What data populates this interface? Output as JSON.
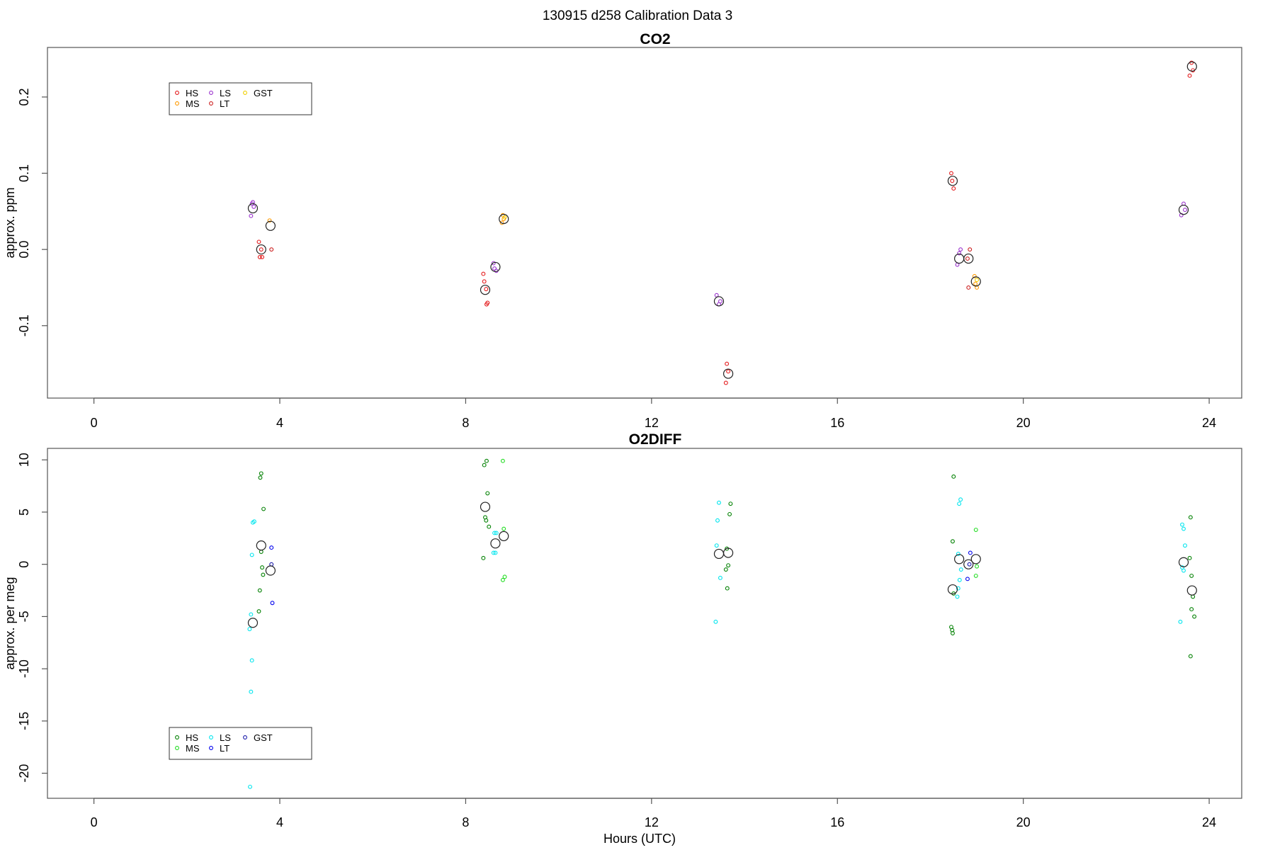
{
  "page_title": "130915   d258   Calibration Data 3",
  "xlabel": "Hours (UTC)",
  "chart_data": [
    {
      "type": "scatter",
      "title": "CO2",
      "ylabel": "approx. ppm",
      "xlim": [
        -1,
        24.7
      ],
      "ylim": [
        -0.195,
        0.265
      ],
      "xticks": [
        0,
        4,
        8,
        12,
        16,
        20,
        24
      ],
      "yticks": [
        -0.1,
        0.0,
        0.1,
        0.2
      ],
      "ytick_labels": [
        "-0.1",
        "0.0",
        "0.1",
        "0.2"
      ],
      "grid": false,
      "legend": {
        "placement": "top-left",
        "entries": [
          {
            "name": "HS",
            "color": "#e41a1c"
          },
          {
            "name": "MS",
            "color": "#ff9900"
          },
          {
            "name": "LS",
            "color": "#9a32cd"
          },
          {
            "name": "LT",
            "color": "#cc1f1f"
          },
          {
            "name": "GST",
            "color": "#f0d000"
          }
        ]
      },
      "means": [
        [
          3.42,
          0.054
        ],
        [
          3.6,
          0.0
        ],
        [
          3.8,
          0.031
        ],
        [
          8.42,
          -0.053
        ],
        [
          8.64,
          -0.023
        ],
        [
          8.82,
          0.04
        ],
        [
          13.45,
          -0.068
        ],
        [
          13.65,
          -0.163
        ],
        [
          18.48,
          0.09
        ],
        [
          18.62,
          -0.012
        ],
        [
          18.82,
          -0.012
        ],
        [
          18.98,
          -0.042
        ],
        [
          23.45,
          0.052
        ],
        [
          23.63,
          0.24
        ]
      ],
      "series": [
        {
          "name": "HS",
          "color": "#e41a1c",
          "points": [
            [
              3.55,
              0.01
            ],
            [
              3.57,
              -0.01
            ],
            [
              3.62,
              -0.01
            ],
            [
              3.6,
              0.0
            ],
            [
              8.38,
              -0.032
            ],
            [
              8.4,
              -0.042
            ],
            [
              8.45,
              -0.072
            ],
            [
              8.47,
              -0.07
            ],
            [
              8.44,
              -0.052
            ],
            [
              13.62,
              -0.15
            ],
            [
              13.6,
              -0.175
            ],
            [
              13.65,
              -0.16
            ],
            [
              18.45,
              0.1
            ],
            [
              18.5,
              0.08
            ],
            [
              18.47,
              0.09
            ],
            [
              23.58,
              0.228
            ],
            [
              23.62,
              0.245
            ],
            [
              23.65,
              0.235
            ]
          ]
        },
        {
          "name": "MS",
          "color": "#ff9900",
          "points": [
            [
              3.78,
              0.038
            ],
            [
              8.8,
              0.045
            ],
            [
              8.78,
              0.035
            ],
            [
              8.82,
              0.04
            ],
            [
              18.95,
              -0.035
            ],
            [
              19.0,
              -0.05
            ],
            [
              18.97,
              -0.045
            ]
          ]
        },
        {
          "name": "LS",
          "color": "#9a32cd",
          "points": [
            [
              3.38,
              0.044
            ],
            [
              3.4,
              0.06
            ],
            [
              3.44,
              0.056
            ],
            [
              3.42,
              0.062
            ],
            [
              8.6,
              -0.018
            ],
            [
              8.62,
              -0.025
            ],
            [
              8.66,
              -0.028
            ],
            [
              13.4,
              -0.06
            ],
            [
              13.45,
              -0.072
            ],
            [
              13.48,
              -0.068
            ],
            [
              18.58,
              -0.02
            ],
            [
              18.62,
              -0.005
            ],
            [
              18.65,
              0.0
            ],
            [
              23.4,
              0.045
            ],
            [
              23.45,
              0.06
            ],
            [
              23.48,
              0.052
            ]
          ]
        },
        {
          "name": "LT",
          "color": "#cc1f1f",
          "points": [
            [
              3.82,
              0.0
            ],
            [
              18.82,
              -0.05
            ],
            [
              18.85,
              0.0
            ],
            [
              18.8,
              -0.012
            ]
          ]
        },
        {
          "name": "GST",
          "color": "#f0d000",
          "points": [
            [
              8.84,
              0.042
            ],
            [
              19.0,
              -0.04
            ]
          ]
        }
      ]
    },
    {
      "type": "scatter",
      "title": "O2DIFF",
      "ylabel": "approx. per meg",
      "xlim": [
        -1,
        24.7
      ],
      "ylim": [
        -22.4,
        11.1
      ],
      "xticks": [
        0,
        4,
        8,
        12,
        16,
        20,
        24
      ],
      "yticks": [
        -20,
        -15,
        -10,
        -5,
        0,
        5,
        10
      ],
      "ytick_labels": [
        "-20",
        "-15",
        "-10",
        "-5",
        "0",
        "5",
        "10"
      ],
      "grid": false,
      "legend": {
        "placement": "bottom-left",
        "entries": [
          {
            "name": "HS",
            "color": "#008000"
          },
          {
            "name": "MS",
            "color": "#22dd22"
          },
          {
            "name": "LS",
            "color": "#00e5ee"
          },
          {
            "name": "LT",
            "color": "#0000ee"
          },
          {
            "name": "GST",
            "color": "#1a1aaa"
          }
        ]
      },
      "means": [
        [
          3.42,
          -5.6
        ],
        [
          3.6,
          1.8
        ],
        [
          3.8,
          -0.6
        ],
        [
          8.42,
          5.5
        ],
        [
          8.64,
          2.0
        ],
        [
          8.82,
          2.7
        ],
        [
          13.45,
          1.0
        ],
        [
          13.65,
          1.1
        ],
        [
          18.48,
          -2.4
        ],
        [
          18.62,
          0.5
        ],
        [
          18.82,
          0.0
        ],
        [
          18.98,
          0.5
        ],
        [
          23.45,
          0.2
        ],
        [
          23.63,
          -2.5
        ]
      ],
      "series": [
        {
          "name": "HS",
          "color": "#008000",
          "points": [
            [
              3.6,
              8.7
            ],
            [
              3.58,
              8.3
            ],
            [
              3.65,
              5.3
            ],
            [
              3.6,
              1.2
            ],
            [
              3.62,
              -0.3
            ],
            [
              3.64,
              -1.0
            ],
            [
              3.57,
              -2.5
            ],
            [
              3.55,
              -4.5
            ],
            [
              8.4,
              9.5
            ],
            [
              8.45,
              9.9
            ],
            [
              8.47,
              6.8
            ],
            [
              8.42,
              4.5
            ],
            [
              8.44,
              4.2
            ],
            [
              8.5,
              3.6
            ],
            [
              8.38,
              0.6
            ],
            [
              13.7,
              5.8
            ],
            [
              13.68,
              4.8
            ],
            [
              13.62,
              1.5
            ],
            [
              13.65,
              -0.1
            ],
            [
              13.6,
              -0.5
            ],
            [
              13.63,
              -2.3
            ],
            [
              18.5,
              8.4
            ],
            [
              18.48,
              2.2
            ],
            [
              18.45,
              -6.0
            ],
            [
              18.47,
              -6.3
            ],
            [
              18.48,
              -6.6
            ],
            [
              18.5,
              -2.8
            ],
            [
              23.6,
              4.5
            ],
            [
              23.58,
              0.6
            ],
            [
              23.62,
              -1.1
            ],
            [
              23.65,
              -3.1
            ],
            [
              23.62,
              -4.3
            ],
            [
              23.68,
              -5.0
            ],
            [
              23.6,
              -8.8
            ]
          ]
        },
        {
          "name": "MS",
          "color": "#22dd22",
          "points": [
            [
              8.8,
              9.9
            ],
            [
              8.82,
              3.4
            ],
            [
              8.84,
              -1.2
            ],
            [
              8.8,
              -1.5
            ],
            [
              18.98,
              3.3
            ],
            [
              19.0,
              -0.2
            ],
            [
              18.98,
              -1.1
            ]
          ]
        },
        {
          "name": "LS",
          "color": "#00e5ee",
          "points": [
            [
              3.45,
              4.1
            ],
            [
              3.42,
              4.0
            ],
            [
              3.4,
              0.9
            ],
            [
              3.38,
              -4.8
            ],
            [
              3.35,
              -6.2
            ],
            [
              3.4,
              -9.2
            ],
            [
              3.38,
              -12.2
            ],
            [
              3.36,
              -21.3
            ],
            [
              8.62,
              3.0
            ],
            [
              8.66,
              3.0
            ],
            [
              8.6,
              1.1
            ],
            [
              8.64,
              1.1
            ],
            [
              13.45,
              5.9
            ],
            [
              13.42,
              4.2
            ],
            [
              13.4,
              1.8
            ],
            [
              13.48,
              -1.3
            ],
            [
              13.38,
              -5.5
            ],
            [
              18.65,
              6.2
            ],
            [
              18.62,
              5.8
            ],
            [
              18.6,
              1.0
            ],
            [
              18.66,
              -0.5
            ],
            [
              18.63,
              -1.5
            ],
            [
              18.6,
              -2.3
            ],
            [
              18.58,
              -3.1
            ],
            [
              23.42,
              3.8
            ],
            [
              23.45,
              3.4
            ],
            [
              23.48,
              1.8
            ],
            [
              23.42,
              -0.3
            ],
            [
              23.45,
              -0.6
            ],
            [
              23.38,
              -5.5
            ]
          ]
        },
        {
          "name": "LT",
          "color": "#0000ee",
          "points": [
            [
              3.82,
              1.6
            ],
            [
              3.84,
              -3.7
            ],
            [
              18.86,
              1.1
            ],
            [
              18.8,
              -1.4
            ]
          ]
        },
        {
          "name": "GST",
          "color": "#1a1aaa",
          "points": [
            [
              3.82,
              0.0
            ],
            [
              18.84,
              0.0
            ]
          ]
        }
      ]
    }
  ]
}
